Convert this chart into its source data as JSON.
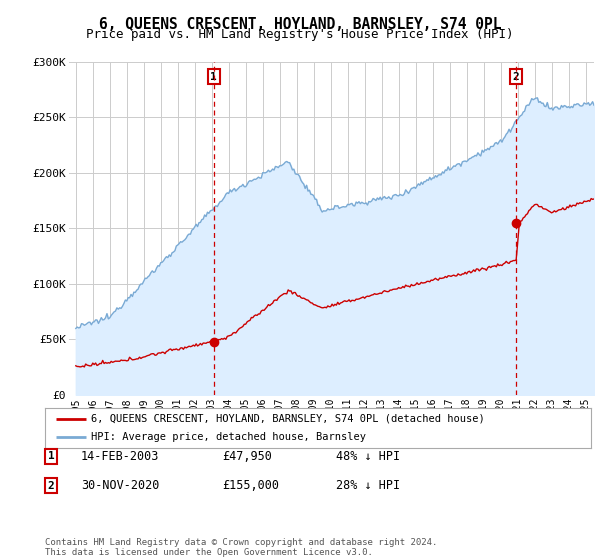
{
  "title": "6, QUEENS CRESCENT, HOYLAND, BARNSLEY, S74 0PL",
  "subtitle": "Price paid vs. HM Land Registry's House Price Index (HPI)",
  "title_fontsize": 10.5,
  "subtitle_fontsize": 9,
  "background_color": "#ffffff",
  "plot_bg_color": "#ffffff",
  "grid_color": "#cccccc",
  "hpi_color": "#7aaad4",
  "hpi_fill_color": "#ddeeff",
  "price_color": "#cc0000",
  "marker1_x": 2003.12,
  "marker1_y_price": 47950,
  "marker2_x": 2020.92,
  "marker2_y_price": 155000,
  "legend_label_price": "6, QUEENS CRESCENT, HOYLAND, BARNSLEY, S74 0PL (detached house)",
  "legend_label_hpi": "HPI: Average price, detached house, Barnsley",
  "table_row1": [
    "1",
    "14-FEB-2003",
    "£47,950",
    "48% ↓ HPI"
  ],
  "table_row2": [
    "2",
    "30-NOV-2020",
    "£155,000",
    "28% ↓ HPI"
  ],
  "footer_text": "Contains HM Land Registry data © Crown copyright and database right 2024.\nThis data is licensed under the Open Government Licence v3.0.",
  "ylim": [
    0,
    300000
  ],
  "xlim_start": 1994.6,
  "xlim_end": 2025.5,
  "yticks": [
    0,
    50000,
    100000,
    150000,
    200000,
    250000,
    300000
  ],
  "ytick_labels": [
    "£0",
    "£50K",
    "£100K",
    "£150K",
    "£200K",
    "£250K",
    "£300K"
  ],
  "xticks": [
    1995,
    1996,
    1997,
    1998,
    1999,
    2000,
    2001,
    2002,
    2003,
    2004,
    2005,
    2006,
    2007,
    2008,
    2009,
    2010,
    2011,
    2012,
    2013,
    2014,
    2015,
    2016,
    2017,
    2018,
    2019,
    2020,
    2021,
    2022,
    2023,
    2024,
    2025
  ]
}
